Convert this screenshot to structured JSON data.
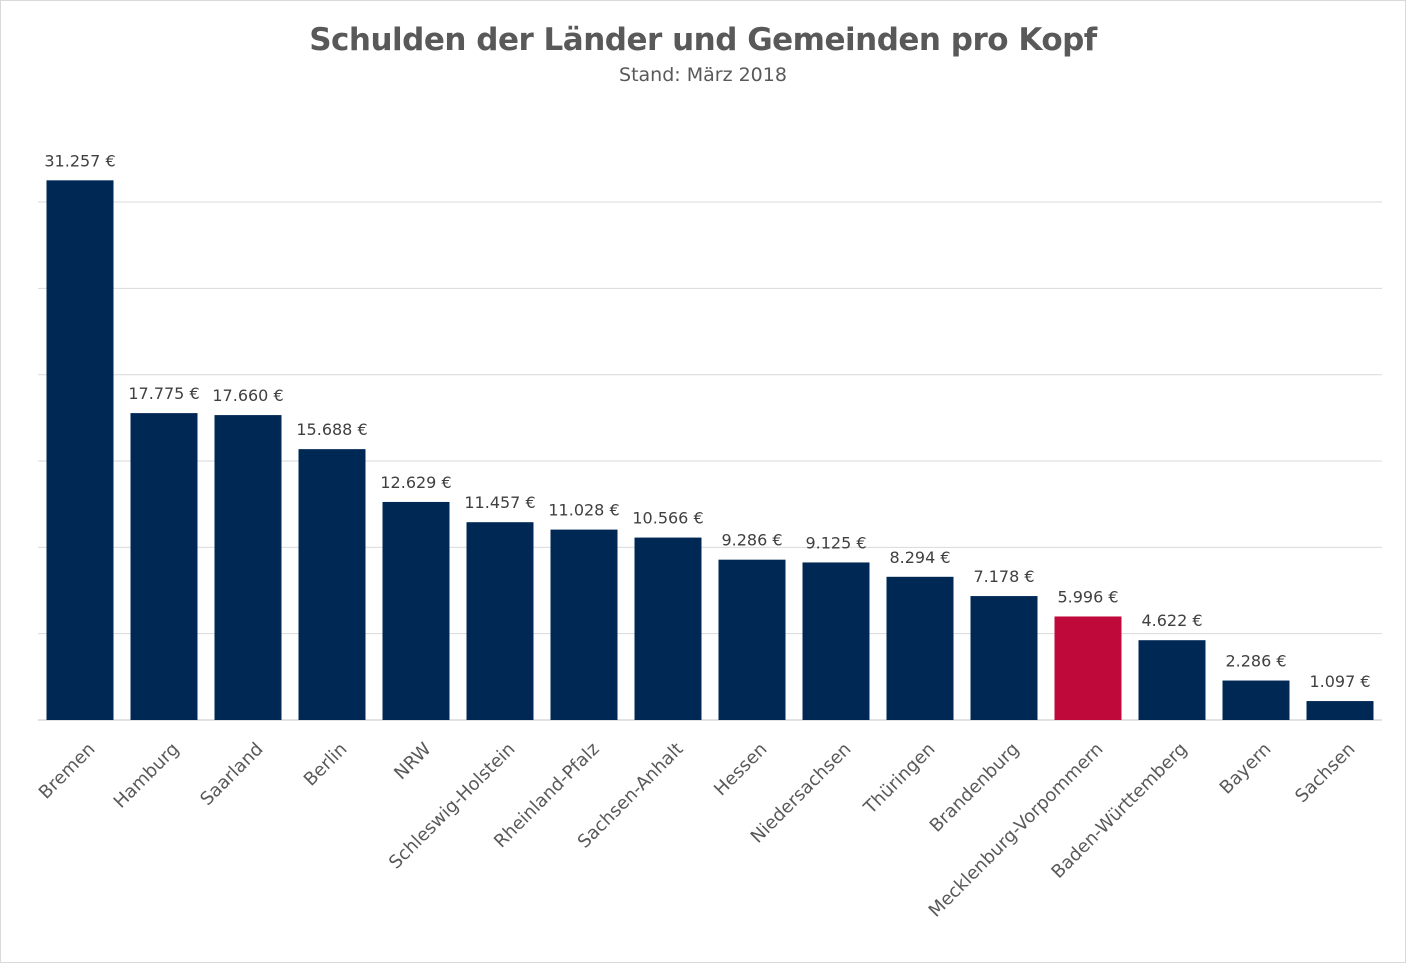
{
  "title": "Schulden der Länder und Gemeinden pro Kopf",
  "subtitle": "Stand: März 2018",
  "colors": {
    "bar": "#002855",
    "highlight": "#c0093b",
    "grid": "#d9d9d9"
  },
  "chart_data": {
    "type": "bar",
    "title": "Schulden der Länder und Gemeinden pro Kopf",
    "subtitle": "Stand: März 2018",
    "xlabel": "",
    "ylabel": "",
    "ylim": [
      0,
      35000
    ],
    "grid": true,
    "unit": "€",
    "highlight_category": "Mecklenburg-Vorpommern",
    "categories": [
      "Bremen",
      "Hamburg",
      "Saarland",
      "Berlin",
      "NRW",
      "Schleswig-Holstein",
      "Rheinland-Pfalz",
      "Sachsen-Anhalt",
      "Hessen",
      "Niedersachsen",
      "Thüringen",
      "Brandenburg",
      "Mecklenburg-Vorpommern",
      "Baden-Württemberg",
      "Bayern",
      "Sachsen"
    ],
    "values": [
      31257,
      17775,
      17660,
      15688,
      12629,
      11457,
      11028,
      10566,
      9286,
      9125,
      8294,
      7178,
      5996,
      4622,
      2286,
      1097
    ],
    "value_labels": [
      "31.257 €",
      "17.775 €",
      "17.660 €",
      "15.688 €",
      "12.629 €",
      "11.457 €",
      "11.028 €",
      "10.566 €",
      "9.286 €",
      "9.125 €",
      "8.294 €",
      "7.178 €",
      "5.996 €",
      "4.622 €",
      "2.286 €",
      "1.097 €"
    ]
  }
}
